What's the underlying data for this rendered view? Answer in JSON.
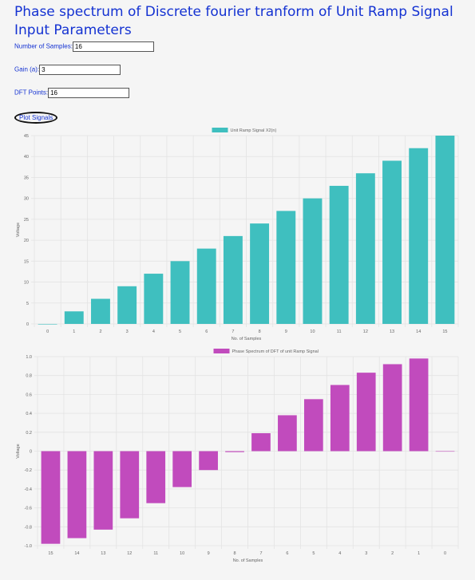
{
  "page": {
    "title": "Phase spectrum of Discrete fourier tranform of Unit Ramp Signal",
    "subtitle": "Input Parameters"
  },
  "form": {
    "samples_label": "Number of Samples:",
    "samples_value": "16",
    "gain_label": "Gain (a):",
    "gain_value": "3",
    "dft_label": "DFT Points:",
    "dft_value": "16",
    "plot_button": "Plot Signals"
  },
  "colors": {
    "ramp": "#3fbfbf",
    "phase": "#c14bbd",
    "grid": "#e3e3e3",
    "text": "#666666"
  },
  "chart_data": [
    {
      "type": "bar",
      "legend": "Unit Ramp Signal X2(n)",
      "xlabel": "No. of Samples",
      "ylabel": "Voltage",
      "categories": [
        "0",
        "1",
        "2",
        "3",
        "4",
        "5",
        "6",
        "7",
        "8",
        "9",
        "10",
        "11",
        "12",
        "13",
        "14",
        "15"
      ],
      "values": [
        0,
        3,
        6,
        9,
        12,
        15,
        18,
        21,
        24,
        27,
        30,
        33,
        36,
        39,
        42,
        45
      ],
      "ylim": [
        0,
        45
      ],
      "yticks": [
        "0",
        "5",
        "10",
        "15",
        "20",
        "25",
        "30",
        "35",
        "40",
        "45"
      ],
      "ytick_values": [
        0,
        5,
        10,
        15,
        20,
        25,
        30,
        35,
        40,
        45
      ],
      "grid": true,
      "legend_position": "top"
    },
    {
      "type": "bar",
      "legend": "Phase Spectrum of DFT of unit Ramp Signal",
      "xlabel": "No. of Samples",
      "ylabel": "Voltage",
      "categories": [
        "15",
        "14",
        "13",
        "12",
        "11",
        "10",
        "9",
        "8",
        "7",
        "6",
        "5",
        "4",
        "3",
        "2",
        "1",
        "0"
      ],
      "values": [
        -0.98,
        -0.92,
        -0.83,
        -0.71,
        -0.55,
        -0.38,
        -0.2,
        -0.01,
        0.19,
        0.38,
        0.55,
        0.7,
        0.83,
        0.92,
        0.98,
        0
      ],
      "ylim": [
        -1.0,
        1.0
      ],
      "yticks": [
        "-1.0",
        "-0.8",
        "-0.6",
        "-0.4",
        "-0.2",
        "0",
        "0.2",
        "0.4",
        "0.6",
        "0.8",
        "1.0"
      ],
      "ytick_values": [
        -1.0,
        -0.8,
        -0.6,
        -0.4,
        -0.2,
        0,
        0.2,
        0.4,
        0.6,
        0.8,
        1.0
      ],
      "grid": true,
      "legend_position": "top"
    }
  ]
}
